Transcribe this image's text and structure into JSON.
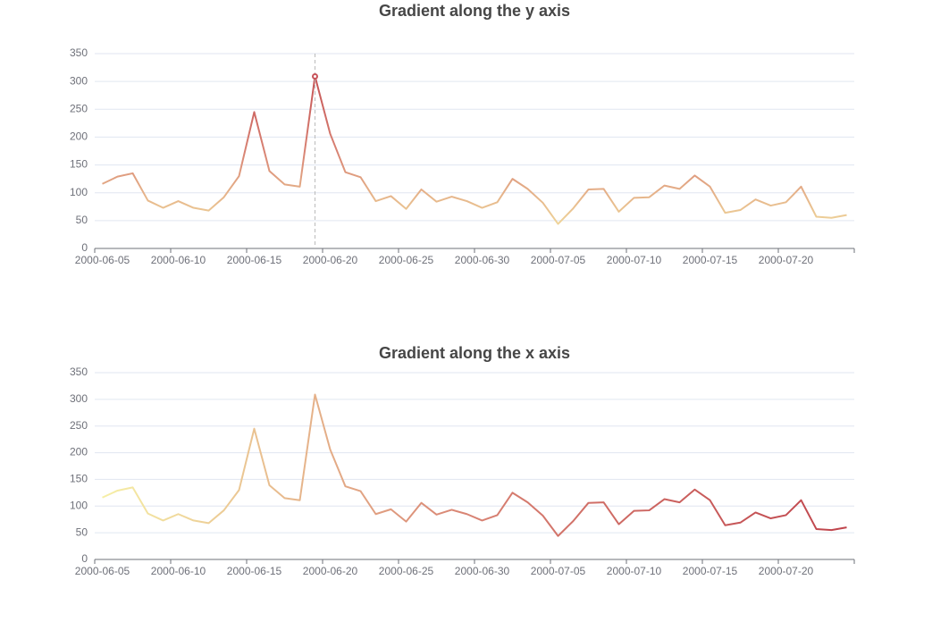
{
  "chart_data": [
    {
      "type": "line",
      "title": "Gradient along the y axis",
      "gradient": "y",
      "colors": [
        "#f6efa6",
        "#d88273",
        "#bf444c"
      ],
      "categories": [
        "2000-06-05",
        null,
        null,
        null,
        null,
        "2000-06-10",
        null,
        null,
        null,
        null,
        "2000-06-15",
        null,
        null,
        null,
        null,
        "2000-06-20",
        null,
        null,
        null,
        null,
        "2000-06-25",
        null,
        null,
        null,
        null,
        "2000-06-30",
        null,
        null,
        null,
        null,
        "2000-07-05",
        null,
        null,
        null,
        null,
        "2000-07-10",
        null,
        null,
        null,
        null,
        "2000-07-15",
        null,
        null,
        null,
        null,
        "2000-07-20",
        null,
        null,
        null,
        null
      ],
      "values": [
        116,
        129,
        135,
        86,
        73,
        85,
        73,
        68,
        92,
        130,
        245,
        139,
        115,
        111,
        309,
        206,
        137,
        128,
        85,
        94,
        71,
        106,
        84,
        93,
        85,
        73,
        83,
        125,
        107,
        82,
        44,
        72,
        106,
        107,
        66,
        91,
        92,
        113,
        107,
        131,
        111,
        64,
        69,
        88,
        77,
        83,
        111,
        57,
        55,
        60
      ],
      "ylim": [
        0,
        350
      ],
      "yticks": [
        0,
        50,
        100,
        150,
        200,
        250,
        300,
        350
      ],
      "grid": true
    },
    {
      "type": "line",
      "title": "Gradient along the x axis",
      "gradient": "x",
      "colors": [
        "#f6efa6",
        "#d88273",
        "#bf444c"
      ],
      "categories": [
        "2000-06-05",
        null,
        null,
        null,
        null,
        "2000-06-10",
        null,
        null,
        null,
        null,
        "2000-06-15",
        null,
        null,
        null,
        null,
        "2000-06-20",
        null,
        null,
        null,
        null,
        "2000-06-25",
        null,
        null,
        null,
        null,
        "2000-06-30",
        null,
        null,
        null,
        null,
        "2000-07-05",
        null,
        null,
        null,
        null,
        "2000-07-10",
        null,
        null,
        null,
        null,
        "2000-07-15",
        null,
        null,
        null,
        null,
        "2000-07-20",
        null,
        null,
        null,
        null
      ],
      "values": [
        116,
        129,
        135,
        86,
        73,
        85,
        73,
        68,
        92,
        130,
        245,
        139,
        115,
        111,
        309,
        206,
        137,
        128,
        85,
        94,
        71,
        106,
        84,
        93,
        85,
        73,
        83,
        125,
        107,
        82,
        44,
        72,
        106,
        107,
        66,
        91,
        92,
        113,
        107,
        131,
        111,
        64,
        69,
        88,
        77,
        83,
        111,
        57,
        55,
        60
      ],
      "ylim": [
        0,
        350
      ],
      "yticks": [
        0,
        50,
        100,
        150,
        200,
        250,
        300,
        350
      ],
      "grid": true
    }
  ]
}
